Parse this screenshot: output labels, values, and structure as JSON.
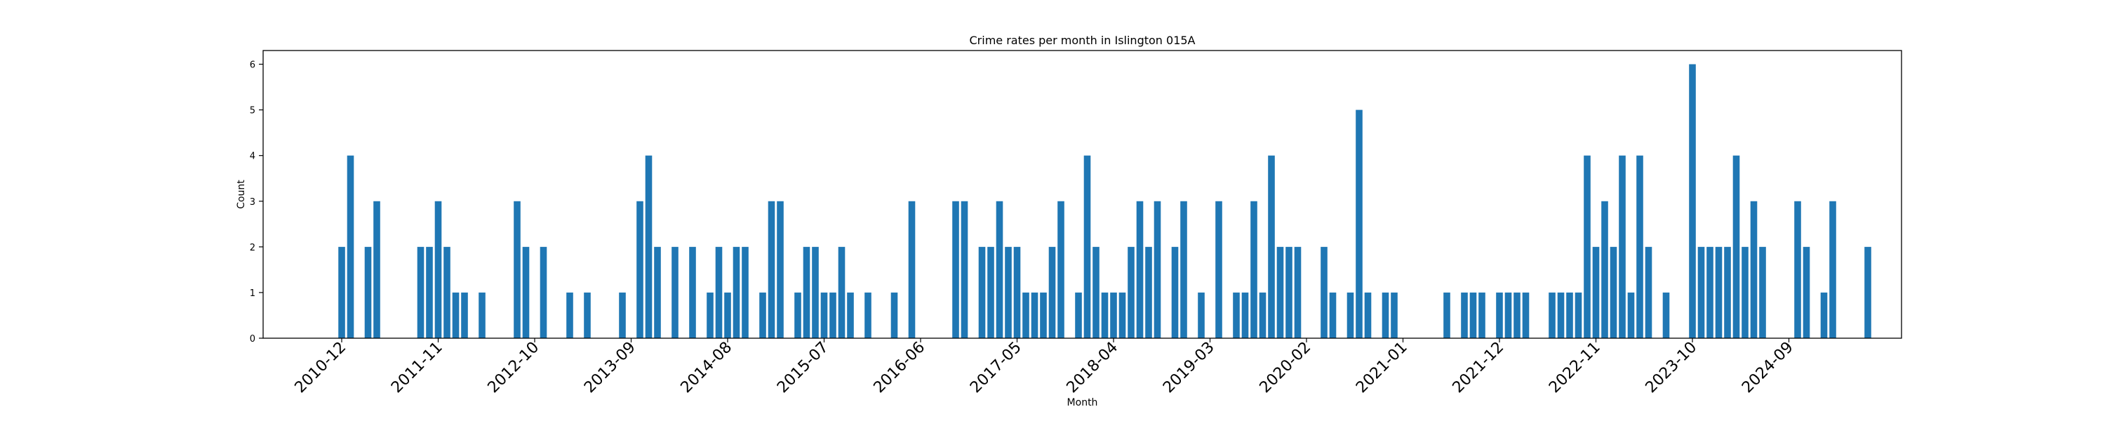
{
  "chart_data": {
    "type": "bar",
    "title": "Crime rates per month in Islington 015A",
    "xlabel": "Month",
    "ylabel": "Count",
    "ylim": [
      0,
      6.3
    ],
    "yticks": [
      0,
      1,
      2,
      3,
      4,
      5,
      6
    ],
    "color": "#1f77b4",
    "x_start": "2010-12",
    "xtick_labels": [
      "2010-12",
      "2011-11",
      "2012-10",
      "2013-09",
      "2014-08",
      "2015-07",
      "2016-06",
      "2017-05",
      "2018-04",
      "2019-03",
      "2020-02",
      "2021-01",
      "2021-12",
      "2022-11",
      "2023-10",
      "2024-09"
    ],
    "values": [
      2,
      4,
      0,
      2,
      3,
      0,
      0,
      0,
      0,
      2,
      2,
      3,
      2,
      1,
      1,
      0,
      1,
      0,
      0,
      0,
      3,
      2,
      0,
      2,
      0,
      0,
      1,
      0,
      1,
      0,
      0,
      0,
      1,
      0,
      3,
      4,
      2,
      0,
      2,
      0,
      2,
      0,
      1,
      2,
      1,
      2,
      2,
      0,
      1,
      3,
      3,
      0,
      1,
      2,
      2,
      1,
      1,
      2,
      1,
      0,
      1,
      0,
      0,
      1,
      0,
      3,
      0,
      0,
      0,
      0,
      3,
      3,
      0,
      2,
      2,
      3,
      2,
      2,
      1,
      1,
      1,
      2,
      3,
      0,
      1,
      4,
      2,
      1,
      1,
      1,
      2,
      3,
      2,
      3,
      0,
      2,
      3,
      0,
      1,
      0,
      3,
      0,
      1,
      1,
      3,
      1,
      4,
      2,
      2,
      2,
      0,
      0,
      2,
      1,
      0,
      1,
      5,
      1,
      0,
      1,
      1,
      0,
      0,
      0,
      0,
      0,
      1,
      0,
      1,
      1,
      1,
      0,
      1,
      1,
      1,
      1,
      0,
      0,
      1,
      1,
      1,
      1,
      4,
      2,
      3,
      2,
      4,
      1,
      4,
      2,
      0,
      1,
      0,
      0,
      6,
      2,
      2,
      2,
      2,
      4,
      2,
      3,
      2,
      0,
      0,
      0,
      3,
      2,
      0,
      1,
      3,
      0,
      0,
      0,
      2
    ]
  }
}
